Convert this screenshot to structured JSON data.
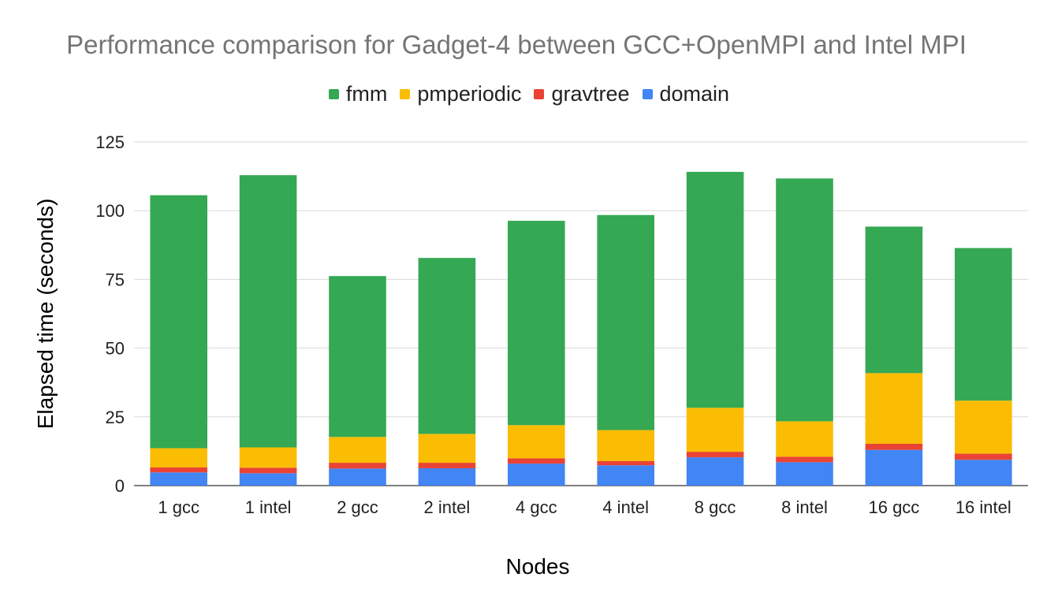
{
  "chart_data": {
    "type": "bar",
    "stacked": true,
    "title": "Performance comparison for Gadget-4 between GCC+OpenMPI and Intel MPI",
    "xlabel": "Nodes",
    "ylabel": "Elapsed time (seconds)",
    "ylim": [
      0,
      125
    ],
    "yticks": [
      "0",
      "25",
      "50",
      "75",
      "100",
      "125"
    ],
    "grid": true,
    "legend_position": "top",
    "categories": [
      "1 gcc",
      "1 intel",
      "2 gcc",
      "2 intel",
      "4 gcc",
      "4 intel",
      "8 gcc",
      "8 intel",
      "16 gcc",
      "16 intel"
    ],
    "series": [
      {
        "name": "domain",
        "color": "#4285f4",
        "values": [
          4.8,
          4.5,
          6.2,
          6.3,
          8.0,
          7.4,
          10.3,
          8.5,
          13.0,
          9.4
        ]
      },
      {
        "name": "gravtree",
        "color": "#ea4335",
        "values": [
          1.8,
          2.0,
          2.1,
          2.0,
          1.9,
          1.5,
          2.0,
          2.0,
          2.2,
          2.2
        ]
      },
      {
        "name": "pmperiodic",
        "color": "#fbbc04",
        "values": [
          7.0,
          7.4,
          9.4,
          10.5,
          12.1,
          11.3,
          16.0,
          12.9,
          25.7,
          19.3
        ]
      },
      {
        "name": "fmm",
        "color": "#34a853",
        "values": [
          92.0,
          99.0,
          58.5,
          64.0,
          74.3,
          78.2,
          85.8,
          88.3,
          53.3,
          55.5
        ]
      }
    ],
    "legend_order": [
      "fmm",
      "pmperiodic",
      "gravtree",
      "domain"
    ]
  }
}
